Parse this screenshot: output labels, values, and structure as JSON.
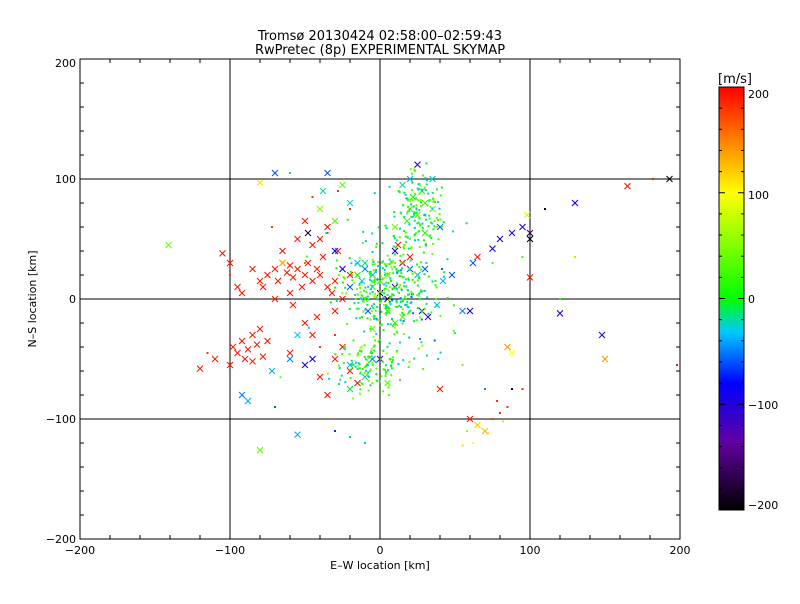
{
  "chart_data": {
    "type": "scatter",
    "title": "Tromsø 20130424 02:58:00–02:59:43",
    "subtitle": "RwPretec (8p) EXPERIMENTAL SKYMAP",
    "xlabel": "E–W location [km]",
    "ylabel": "N–S location [km]",
    "xlim": [
      -200,
      200
    ],
    "ylim": [
      -200,
      200
    ],
    "xticks": [
      -200,
      -100,
      0,
      100,
      200
    ],
    "yticks": [
      -200,
      -100,
      0,
      100,
      200
    ],
    "xtick_labels": [
      "−200",
      "−100",
      "0",
      "100",
      "200"
    ],
    "ytick_labels": [
      "−200",
      "−100",
      "0",
      "100",
      "200"
    ],
    "grid": true,
    "gridlines": [
      -100,
      0,
      100
    ],
    "markers": [
      "x",
      "dot"
    ],
    "colorbar": {
      "label": "[m/s]",
      "range": [
        -200,
        200
      ],
      "ticks": [
        200,
        100,
        0,
        -100,
        -200
      ],
      "tick_labels": [
        "200",
        "100",
        "0",
        "−100",
        "−200"
      ],
      "colormap": [
        "#000000",
        "#6000a0",
        "#0000ff",
        "#00c8ff",
        "#00ff00",
        "#ffff00",
        "#ff0000"
      ]
    },
    "points": [
      {
        "x": -141,
        "y": 45,
        "v": 40,
        "m": "x"
      },
      {
        "x": -120,
        "y": -58,
        "v": 190,
        "m": "x"
      },
      {
        "x": -110,
        "y": -50,
        "v": 190,
        "m": "x"
      },
      {
        "x": -105,
        "y": 38,
        "v": 190,
        "m": "x"
      },
      {
        "x": -100,
        "y": 30,
        "v": 190,
        "m": "x"
      },
      {
        "x": -98,
        "y": -40,
        "v": 190,
        "m": "x"
      },
      {
        "x": -95,
        "y": -45,
        "v": 190,
        "m": "x"
      },
      {
        "x": -92,
        "y": -35,
        "v": 190,
        "m": "x"
      },
      {
        "x": -90,
        "y": -50,
        "v": 190,
        "m": "x"
      },
      {
        "x": -88,
        "y": -42,
        "v": 190,
        "m": "x"
      },
      {
        "x": -85,
        "y": -30,
        "v": 190,
        "m": "x"
      },
      {
        "x": -82,
        "y": -38,
        "v": 190,
        "m": "x"
      },
      {
        "x": -80,
        "y": -25,
        "v": 190,
        "m": "x"
      },
      {
        "x": -78,
        "y": -48,
        "v": 190,
        "m": "x"
      },
      {
        "x": -75,
        "y": -35,
        "v": 190,
        "m": "x"
      },
      {
        "x": -92,
        "y": -80,
        "v": -50,
        "m": "x"
      },
      {
        "x": -88,
        "y": -85,
        "v": -40,
        "m": "x"
      },
      {
        "x": -80,
        "y": -126,
        "v": 40,
        "m": "x"
      },
      {
        "x": -80,
        "y": 97,
        "v": 110,
        "m": "x"
      },
      {
        "x": -70,
        "y": 105,
        "v": -60,
        "m": "x"
      },
      {
        "x": -72,
        "y": -60,
        "v": -40,
        "m": "x"
      },
      {
        "x": -55,
        "y": -113,
        "v": -40,
        "m": "x"
      },
      {
        "x": -95,
        "y": 10,
        "v": 190,
        "m": "x"
      },
      {
        "x": -92,
        "y": 5,
        "v": 190,
        "m": "x"
      },
      {
        "x": -85,
        "y": 25,
        "v": 190,
        "m": "x"
      },
      {
        "x": -80,
        "y": 15,
        "v": 190,
        "m": "x"
      },
      {
        "x": -78,
        "y": 10,
        "v": 190,
        "m": "x"
      },
      {
        "x": -75,
        "y": 20,
        "v": 190,
        "m": "x"
      },
      {
        "x": -70,
        "y": 25,
        "v": 190,
        "m": "x"
      },
      {
        "x": -68,
        "y": 15,
        "v": 190,
        "m": "x"
      },
      {
        "x": -65,
        "y": 30,
        "v": 190,
        "m": "x"
      },
      {
        "x": -62,
        "y": 22,
        "v": 190,
        "m": "x"
      },
      {
        "x": -60,
        "y": 28,
        "v": 190,
        "m": "x"
      },
      {
        "x": -58,
        "y": 18,
        "v": 190,
        "m": "x"
      },
      {
        "x": -55,
        "y": 25,
        "v": 190,
        "m": "x"
      },
      {
        "x": -52,
        "y": 10,
        "v": 190,
        "m": "x"
      },
      {
        "x": -50,
        "y": 20,
        "v": 190,
        "m": "x"
      },
      {
        "x": -48,
        "y": 30,
        "v": 190,
        "m": "x"
      },
      {
        "x": -45,
        "y": 15,
        "v": 190,
        "m": "x"
      },
      {
        "x": -42,
        "y": 25,
        "v": 190,
        "m": "x"
      },
      {
        "x": -40,
        "y": 20,
        "v": 190,
        "m": "x"
      },
      {
        "x": -38,
        "y": 35,
        "v": 190,
        "m": "x"
      },
      {
        "x": -35,
        "y": 10,
        "v": 190,
        "m": "x"
      },
      {
        "x": -32,
        "y": 5,
        "v": 190,
        "m": "x"
      },
      {
        "x": -30,
        "y": 15,
        "v": 190,
        "m": "x"
      },
      {
        "x": -28,
        "y": 40,
        "v": 190,
        "m": "x"
      },
      {
        "x": -25,
        "y": 0,
        "v": 190,
        "m": "x"
      },
      {
        "x": -45,
        "y": 45,
        "v": 190,
        "m": "x"
      },
      {
        "x": -40,
        "y": 50,
        "v": 190,
        "m": "x"
      },
      {
        "x": -55,
        "y": 50,
        "v": 190,
        "m": "x"
      },
      {
        "x": -65,
        "y": 40,
        "v": 190,
        "m": "x"
      },
      {
        "x": -58,
        "y": -5,
        "v": 190,
        "m": "x"
      },
      {
        "x": -50,
        "y": -20,
        "v": 190,
        "m": "x"
      },
      {
        "x": -45,
        "y": -30,
        "v": 190,
        "m": "x"
      },
      {
        "x": -42,
        "y": -15,
        "v": 190,
        "m": "x"
      },
      {
        "x": -60,
        "y": -45,
        "v": 190,
        "m": "x"
      },
      {
        "x": -30,
        "y": -50,
        "v": 190,
        "m": "x"
      },
      {
        "x": -25,
        "y": -40,
        "v": 190,
        "m": "x"
      },
      {
        "x": -40,
        "y": -65,
        "v": 190,
        "m": "x"
      },
      {
        "x": -35,
        "y": -80,
        "v": 190,
        "m": "x"
      },
      {
        "x": -20,
        "y": -60,
        "v": 190,
        "m": "x"
      },
      {
        "x": -15,
        "y": -70,
        "v": 190,
        "m": "x"
      },
      {
        "x": -60,
        "y": 5,
        "v": 190,
        "m": "x"
      },
      {
        "x": -70,
        "y": 0,
        "v": 190,
        "m": "x"
      },
      {
        "x": -100,
        "y": -55,
        "v": 190,
        "m": "x"
      },
      {
        "x": -85,
        "y": -52,
        "v": 190,
        "m": "x"
      },
      {
        "x": -50,
        "y": 65,
        "v": 190,
        "m": "x"
      },
      {
        "x": -35,
        "y": 60,
        "v": 190,
        "m": "x"
      },
      {
        "x": -20,
        "y": 20,
        "v": 190,
        "m": "x"
      },
      {
        "x": -30,
        "y": -10,
        "v": 190,
        "m": "x"
      },
      {
        "x": -48,
        "y": 55,
        "v": -180,
        "m": "x"
      },
      {
        "x": -35,
        "y": 105,
        "v": -60,
        "m": "x"
      },
      {
        "x": -30,
        "y": 40,
        "v": -80,
        "m": "x"
      },
      {
        "x": -25,
        "y": 25,
        "v": -90,
        "m": "x"
      },
      {
        "x": -20,
        "y": 10,
        "v": -60,
        "m": "x"
      },
      {
        "x": -15,
        "y": 30,
        "v": -40,
        "m": "x"
      },
      {
        "x": -10,
        "y": 25,
        "v": -50,
        "m": "x"
      },
      {
        "x": -12,
        "y": 15,
        "v": -30,
        "m": "x"
      },
      {
        "x": -5,
        "y": 20,
        "v": -40,
        "m": "x"
      },
      {
        "x": -8,
        "y": -10,
        "v": -60,
        "m": "x"
      },
      {
        "x": -5,
        "y": -50,
        "v": -50,
        "m": "x"
      },
      {
        "x": 0,
        "y": -50,
        "v": -120,
        "m": "x"
      },
      {
        "x": -20,
        "y": -55,
        "v": -40,
        "m": "x"
      },
      {
        "x": -45,
        "y": -50,
        "v": -90,
        "m": "x"
      },
      {
        "x": -50,
        "y": -55,
        "v": -100,
        "m": "x"
      },
      {
        "x": 10,
        "y": 40,
        "v": -100,
        "m": "x"
      },
      {
        "x": 15,
        "y": 30,
        "v": -90,
        "m": "x"
      },
      {
        "x": 20,
        "y": 25,
        "v": -60,
        "m": "x"
      },
      {
        "x": 25,
        "y": 20,
        "v": -40,
        "m": "x"
      },
      {
        "x": 30,
        "y": 25,
        "v": -60,
        "m": "x"
      },
      {
        "x": 25,
        "y": 112,
        "v": -110,
        "m": "x"
      },
      {
        "x": 20,
        "y": 100,
        "v": -40,
        "m": "x"
      },
      {
        "x": 35,
        "y": 100,
        "v": -40,
        "m": "x"
      },
      {
        "x": 40,
        "y": 60,
        "v": -60,
        "m": "x"
      },
      {
        "x": 32,
        "y": -15,
        "v": -120,
        "m": "x"
      },
      {
        "x": 10,
        "y": 10,
        "v": -120,
        "m": "x"
      },
      {
        "x": 5,
        "y": 0,
        "v": -180,
        "m": "x"
      },
      {
        "x": 0,
        "y": 5,
        "v": -190,
        "m": "x"
      },
      {
        "x": 28,
        "y": -10,
        "v": -100,
        "m": "x"
      },
      {
        "x": 38,
        "y": -5,
        "v": -40,
        "m": "x"
      },
      {
        "x": 42,
        "y": 15,
        "v": -40,
        "m": "x"
      },
      {
        "x": 48,
        "y": 20,
        "v": -60,
        "m": "x"
      },
      {
        "x": 55,
        "y": -10,
        "v": -50,
        "m": "x"
      },
      {
        "x": 60,
        "y": -10,
        "v": -100,
        "m": "x"
      },
      {
        "x": 62,
        "y": 30,
        "v": -60,
        "m": "x"
      },
      {
        "x": 75,
        "y": 42,
        "v": -90,
        "m": "x"
      },
      {
        "x": 80,
        "y": 50,
        "v": -100,
        "m": "x"
      },
      {
        "x": 88,
        "y": 55,
        "v": -100,
        "m": "x"
      },
      {
        "x": 95,
        "y": 60,
        "v": -110,
        "m": "x"
      },
      {
        "x": 100,
        "y": 55,
        "v": -160,
        "m": "x"
      },
      {
        "x": 100,
        "y": 50,
        "v": -200,
        "m": "x"
      },
      {
        "x": 98,
        "y": 70,
        "v": 80,
        "m": "x"
      },
      {
        "x": 120,
        "y": -12,
        "v": -100,
        "m": "x"
      },
      {
        "x": 130,
        "y": 80,
        "v": -90,
        "m": "x"
      },
      {
        "x": 148,
        "y": -30,
        "v": -110,
        "m": "x"
      },
      {
        "x": 150,
        "y": -50,
        "v": 140,
        "m": "x"
      },
      {
        "x": 165,
        "y": 94,
        "v": 190,
        "m": "x"
      },
      {
        "x": 193,
        "y": 100,
        "v": -190,
        "m": "x"
      },
      {
        "x": 100,
        "y": 18,
        "v": 190,
        "m": "x"
      },
      {
        "x": 65,
        "y": 35,
        "v": 190,
        "m": "x"
      },
      {
        "x": 40,
        "y": -75,
        "v": 190,
        "m": "x"
      },
      {
        "x": 15,
        "y": 30,
        "v": 190,
        "m": "x"
      },
      {
        "x": 20,
        "y": 35,
        "v": 190,
        "m": "x"
      },
      {
        "x": 12,
        "y": 45,
        "v": 190,
        "m": "x"
      },
      {
        "x": 60,
        "y": -100,
        "v": 190,
        "m": "x"
      },
      {
        "x": 70,
        "y": -110,
        "v": 130,
        "m": "x"
      },
      {
        "x": 65,
        "y": -105,
        "v": 120,
        "m": "x"
      },
      {
        "x": 85,
        "y": -40,
        "v": 140,
        "m": "x"
      },
      {
        "x": 88,
        "y": -45,
        "v": 100,
        "m": "x"
      },
      {
        "x": 10,
        "y": 60,
        "v": 40,
        "m": "x"
      },
      {
        "x": 18,
        "y": 65,
        "v": 20,
        "m": "x"
      },
      {
        "x": 25,
        "y": 70,
        "v": 30,
        "m": "x"
      },
      {
        "x": 30,
        "y": 55,
        "v": 10,
        "m": "x"
      },
      {
        "x": 22,
        "y": 85,
        "v": 0,
        "m": "x"
      },
      {
        "x": 28,
        "y": 90,
        "v": 10,
        "m": "x"
      },
      {
        "x": 15,
        "y": 95,
        "v": -20,
        "m": "x"
      },
      {
        "x": 30,
        "y": 80,
        "v": 20,
        "m": "x"
      },
      {
        "x": 35,
        "y": 75,
        "v": 30,
        "m": "x"
      },
      {
        "x": 20,
        "y": 75,
        "v": 10,
        "m": "x"
      },
      {
        "x": -10,
        "y": 30,
        "v": -20,
        "m": "x"
      },
      {
        "x": -15,
        "y": 20,
        "v": 10,
        "m": "x"
      },
      {
        "x": 0,
        "y": 15,
        "v": 20,
        "m": "x"
      },
      {
        "x": 5,
        "y": 20,
        "v": 30,
        "m": "x"
      },
      {
        "x": -5,
        "y": 10,
        "v": 10,
        "m": "x"
      },
      {
        "x": -10,
        "y": 0,
        "v": 20,
        "m": "x"
      },
      {
        "x": 5,
        "y": -10,
        "v": 10,
        "m": "x"
      },
      {
        "x": 10,
        "y": -20,
        "v": 20,
        "m": "x"
      },
      {
        "x": -5,
        "y": -25,
        "v": 30,
        "m": "x"
      },
      {
        "x": 15,
        "y": -15,
        "v": 30,
        "m": "x"
      },
      {
        "x": -20,
        "y": -75,
        "v": -10,
        "m": "x"
      },
      {
        "x": -10,
        "y": -65,
        "v": -20,
        "m": "x"
      },
      {
        "x": 5,
        "y": -70,
        "v": 30,
        "m": "x"
      },
      {
        "x": -30,
        "y": 65,
        "v": 30,
        "m": "x"
      },
      {
        "x": -40,
        "y": 75,
        "v": 50,
        "m": "x"
      },
      {
        "x": -20,
        "y": 80,
        "v": -30,
        "m": "x"
      },
      {
        "x": -38,
        "y": 90,
        "v": -20,
        "m": "x"
      },
      {
        "x": -25,
        "y": 95,
        "v": 40,
        "m": "x"
      },
      {
        "x": -55,
        "y": -30,
        "v": -30,
        "m": "x"
      },
      {
        "x": -60,
        "y": -50,
        "v": -50,
        "m": "x"
      },
      {
        "x": -65,
        "y": 30,
        "v": 130,
        "m": "x"
      },
      {
        "x": -50,
        "y": 30,
        "v": 160,
        "m": "dot"
      },
      {
        "x": -35,
        "y": 55,
        "v": 180,
        "m": "dot"
      },
      {
        "x": -28,
        "y": 90,
        "v": 180,
        "m": "dot"
      },
      {
        "x": -20,
        "y": 75,
        "v": 180,
        "m": "dot"
      },
      {
        "x": -45,
        "y": 85,
        "v": 180,
        "m": "dot"
      },
      {
        "x": -115,
        "y": -45,
        "v": 180,
        "m": "dot"
      },
      {
        "x": -100,
        "y": 20,
        "v": 180,
        "m": "dot"
      },
      {
        "x": -72,
        "y": 60,
        "v": 180,
        "m": "dot"
      },
      {
        "x": -40,
        "y": -40,
        "v": 180,
        "m": "dot"
      },
      {
        "x": -30,
        "y": -30,
        "v": 180,
        "m": "dot"
      },
      {
        "x": 80,
        "y": -95,
        "v": 180,
        "m": "dot"
      },
      {
        "x": 75,
        "y": -100,
        "v": 180,
        "m": "dot"
      },
      {
        "x": 85,
        "y": -90,
        "v": 180,
        "m": "dot"
      },
      {
        "x": 78,
        "y": -85,
        "v": 180,
        "m": "dot"
      },
      {
        "x": 95,
        "y": -75,
        "v": 180,
        "m": "dot"
      },
      {
        "x": 72,
        "y": -112,
        "v": 120,
        "m": "dot"
      },
      {
        "x": 62,
        "y": -120,
        "v": 100,
        "m": "dot"
      },
      {
        "x": 55,
        "y": -122,
        "v": 110,
        "m": "dot"
      },
      {
        "x": 68,
        "y": -108,
        "v": 90,
        "m": "dot"
      },
      {
        "x": 58,
        "y": -110,
        "v": 60,
        "m": "dot"
      },
      {
        "x": 82,
        "y": -102,
        "v": 70,
        "m": "dot"
      },
      {
        "x": 88,
        "y": -75,
        "v": -180,
        "m": "dot"
      },
      {
        "x": 110,
        "y": 75,
        "v": -190,
        "m": "dot"
      },
      {
        "x": 130,
        "y": 35,
        "v": 60,
        "m": "dot"
      },
      {
        "x": 182,
        "y": 100,
        "v": 190,
        "m": "dot"
      },
      {
        "x": 198,
        "y": -55,
        "v": 190,
        "m": "dot"
      },
      {
        "x": 120,
        "y": 0,
        "v": 10,
        "m": "dot"
      },
      {
        "x": 95,
        "y": 35,
        "v": 20,
        "m": "dot"
      },
      {
        "x": 75,
        "y": 30,
        "v": 30,
        "m": "dot"
      },
      {
        "x": 55,
        "y": -55,
        "v": 130,
        "m": "dot"
      },
      {
        "x": 70,
        "y": -75,
        "v": -50,
        "m": "dot"
      },
      {
        "x": -70,
        "y": -90,
        "v": -60,
        "m": "dot"
      },
      {
        "x": -30,
        "y": -110,
        "v": -70,
        "m": "dot"
      },
      {
        "x": -20,
        "y": -115,
        "v": -40,
        "m": "dot"
      },
      {
        "x": -60,
        "y": 105,
        "v": -20,
        "m": "dot"
      },
      {
        "x": -10,
        "y": -120,
        "v": -30,
        "m": "dot"
      }
    ]
  }
}
